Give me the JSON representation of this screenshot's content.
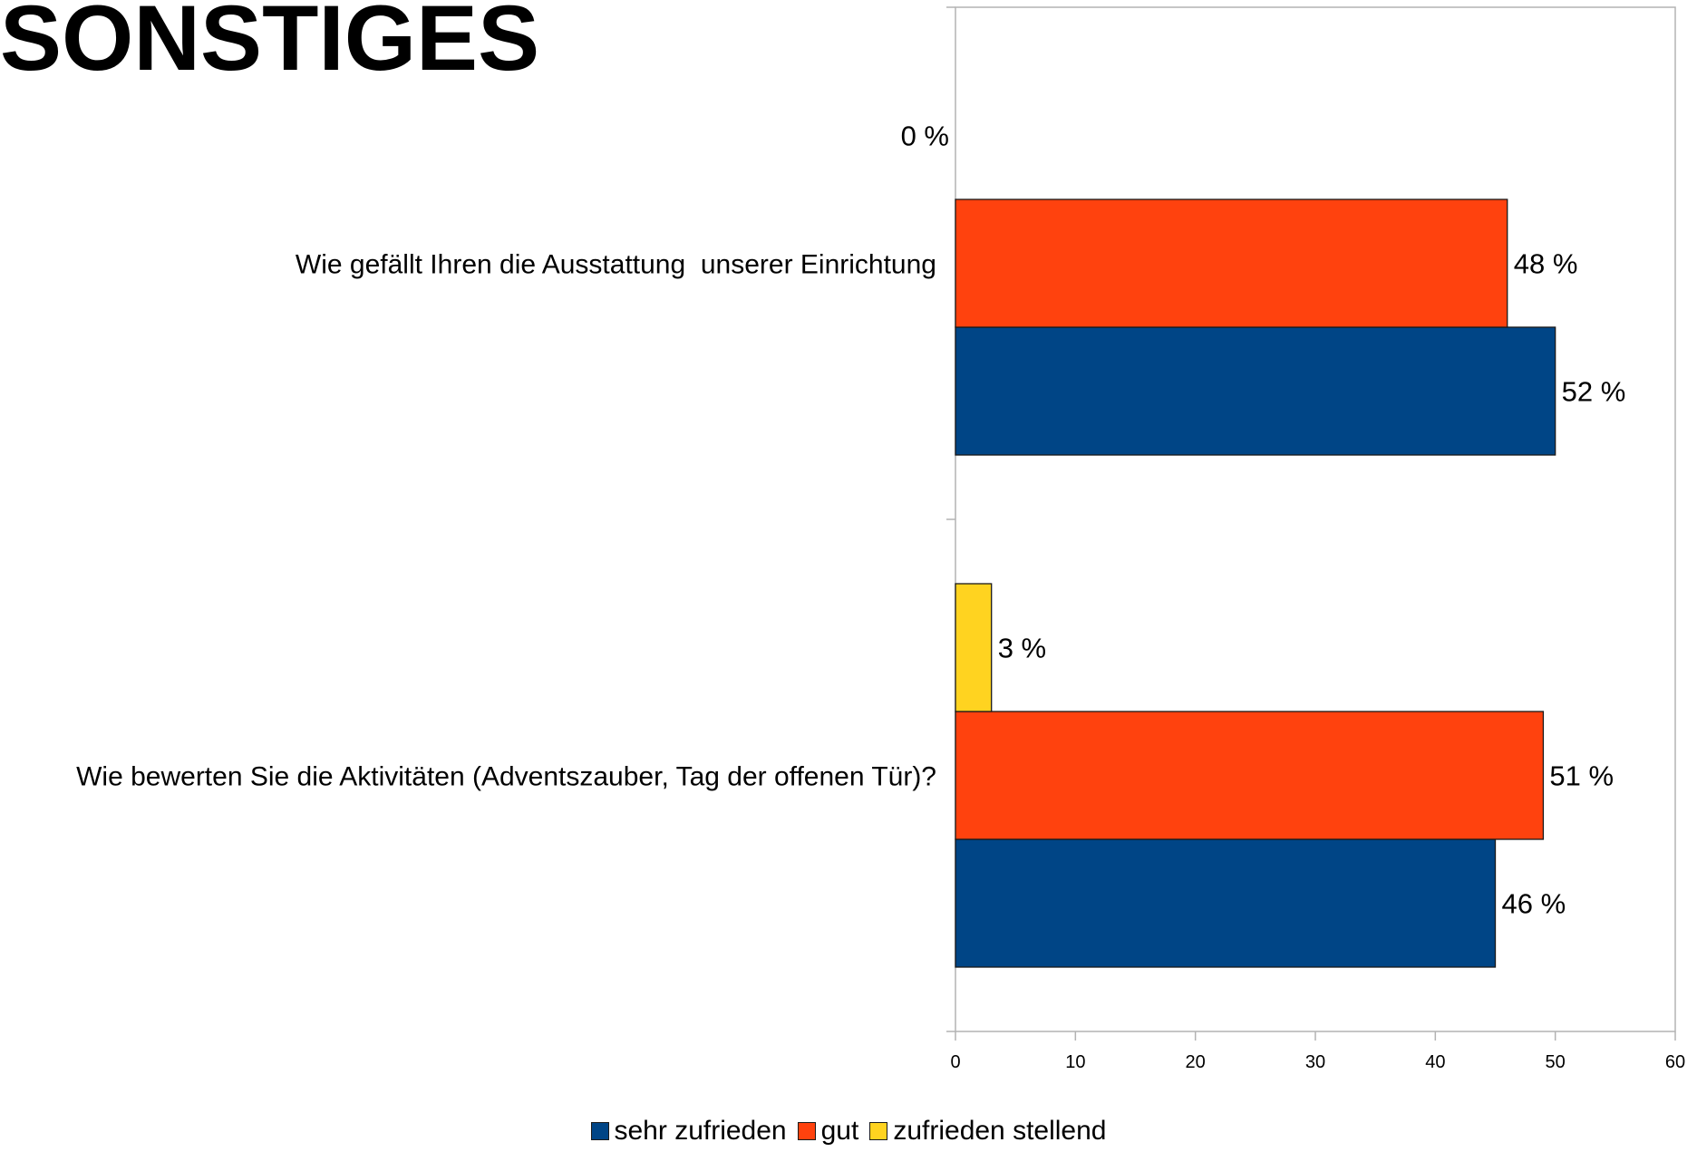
{
  "page": {
    "title": "SONSTIGES"
  },
  "chart_data": {
    "type": "bar",
    "orientation": "horizontal",
    "categories": [
      "Wie gefällt Ihren die Ausstattung  unserer Einrichtung",
      "Wie bewerten Sie die Aktivitäten (Adventszauber, Tag der offenen Tür)?"
    ],
    "series": [
      {
        "name": "sehr zufrieden",
        "color": "#004586",
        "values": [
          50,
          45
        ],
        "labels": [
          "52 %",
          "46 %"
        ]
      },
      {
        "name": "gut",
        "color": "#ff420e",
        "values": [
          46,
          49
        ],
        "labels": [
          "48 %",
          "51 %"
        ]
      },
      {
        "name": "zufrieden stellend",
        "color": "#ffd320",
        "values": [
          0,
          3
        ],
        "labels": [
          "0 %",
          "3 %"
        ]
      }
    ],
    "xlim": [
      0,
      60
    ],
    "x_ticks": [
      "0",
      "10",
      "20",
      "30",
      "40",
      "50",
      "60"
    ],
    "grid": false,
    "legend_position": "bottom"
  }
}
